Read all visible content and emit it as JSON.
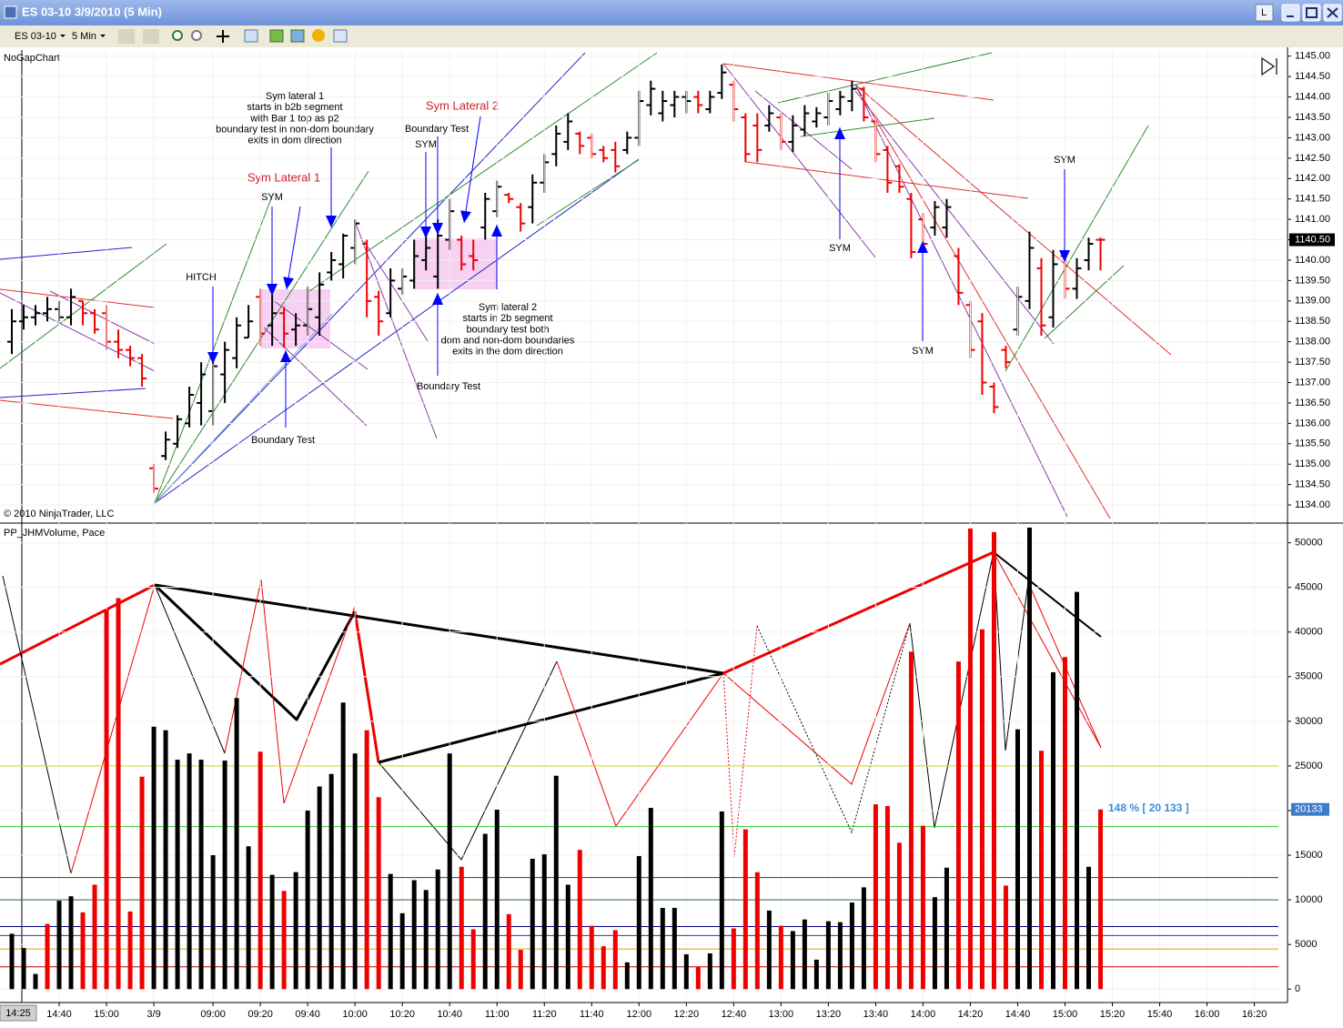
{
  "window": {
    "title": "ES 03-10  3/9/2010 (5 Min)",
    "instrument": "ES 03-10",
    "interval": "5 Min",
    "buttons": [
      "L"
    ]
  },
  "chart_data": [
    {
      "type": "ohlc",
      "title": "NoGapChart",
      "copyright": "© 2010 NinjaTrader, LLC",
      "open": [
        1138.0,
        1138.5,
        1138.6,
        1138.7,
        1138.8,
        1138.6,
        1139.0,
        1138.7,
        1138.7,
        1138.0,
        1137.8,
        1137.6,
        1134.9,
        1135.2,
        1135.5,
        1136.0,
        1136.5,
        1136.3,
        1137.2,
        1137.6,
        1138.1,
        1139.1,
        1138.4,
        1138.7,
        1138.3,
        1138.4,
        1138.6,
        1139.7,
        1139.9,
        1140.3,
        1140.4,
        1139.1,
        1138.7,
        1139.3,
        1139.5,
        1140.0,
        1139.6,
        1140.5,
        1140.5,
        1140.1,
        1140.8,
        1141.2,
        1141.6,
        1141.3,
        1141.3,
        1141.9,
        1142.6,
        1142.9,
        1143.1,
        1143.0,
        1142.7,
        1142.7,
        1142.7,
        1143.0,
        1143.8,
        1143.6,
        1143.8,
        1144.0,
        1144.0,
        1143.7,
        1144.1,
        1144.3,
        1143.5,
        1143.3,
        1143.3,
        1143.5,
        1142.9,
        1143.2,
        1143.4,
        1143.5,
        1143.7,
        1143.9,
        1144.2,
        1143.4,
        1142.7,
        1142.3,
        1141.5,
        1141.0,
        1140.8,
        1140.8,
        1140.1,
        1138.9,
        1138.5,
        1136.9,
        1137.8,
        1138.3,
        1139.0,
        1139.8,
        1138.6,
        1140.1,
        1139.3,
        1140.0,
        1140.5
      ],
      "high": [
        1138.8,
        1138.9,
        1138.9,
        1139.1,
        1139.0,
        1139.3,
        1139.0,
        1138.8,
        1138.9,
        1138.3,
        1137.9,
        1137.7,
        1135.0,
        1135.8,
        1136.2,
        1136.9,
        1137.5,
        1137.6,
        1138.0,
        1138.6,
        1138.9,
        1139.3,
        1139.25,
        1138.85,
        1138.7,
        1139.35,
        1139.7,
        1140.2,
        1140.65,
        1141.0,
        1140.5,
        1139.25,
        1139.8,
        1139.8,
        1140.5,
        1140.75,
        1141.0,
        1141.5,
        1140.6,
        1140.5,
        1141.65,
        1141.95,
        1141.65,
        1141.4,
        1142.1,
        1142.6,
        1143.3,
        1143.6,
        1143.15,
        1143.1,
        1142.8,
        1142.9,
        1143.15,
        1144.15,
        1144.4,
        1144.15,
        1144.15,
        1144.15,
        1144.15,
        1144.15,
        1144.8,
        1144.4,
        1143.6,
        1143.6,
        1143.8,
        1143.6,
        1143.55,
        1143.8,
        1143.75,
        1144.1,
        1144.15,
        1144.4,
        1144.25,
        1143.55,
        1142.8,
        1142.35,
        1141.65,
        1141.15,
        1141.45,
        1141.5,
        1140.3,
        1139.0,
        1138.7,
        1137.0,
        1137.9,
        1139.35,
        1140.7,
        1140.05,
        1140.25,
        1140.25,
        1140.05,
        1140.55,
        1140.55
      ],
      "low": [
        1137.7,
        1138.3,
        1138.4,
        1138.5,
        1138.5,
        1138.4,
        1138.4,
        1138.2,
        1137.8,
        1137.6,
        1137.4,
        1136.9,
        1134.3,
        1135.1,
        1135.4,
        1135.9,
        1135.95,
        1135.95,
        1136.5,
        1137.35,
        1138.1,
        1137.9,
        1137.9,
        1137.85,
        1137.9,
        1138.15,
        1138.15,
        1139.5,
        1139.55,
        1139.9,
        1138.6,
        1138.15,
        1138.6,
        1139.15,
        1139.3,
        1139.75,
        1139.3,
        1140.25,
        1139.75,
        1139.75,
        1140.5,
        1141.05,
        1141.4,
        1140.7,
        1140.9,
        1141.65,
        1142.3,
        1142.7,
        1142.6,
        1142.5,
        1142.4,
        1142.15,
        1142.6,
        1142.8,
        1143.55,
        1143.4,
        1143.5,
        1143.6,
        1143.6,
        1143.6,
        1143.95,
        1143.4,
        1142.4,
        1142.4,
        1143.15,
        1142.7,
        1142.65,
        1143.05,
        1143.25,
        1143.3,
        1143.55,
        1143.65,
        1143.4,
        1142.4,
        1141.65,
        1141.65,
        1140.05,
        1140.25,
        1140.6,
        1140.55,
        1138.9,
        1137.6,
        1136.7,
        1136.25,
        1137.35,
        1138.15,
        1138.8,
        1138.15,
        1138.35,
        1139.05,
        1139.05,
        1139.75,
        1139.75
      ],
      "close": [
        1138.5,
        1138.6,
        1138.7,
        1138.8,
        1138.6,
        1139.1,
        1138.7,
        1138.3,
        1138.0,
        1137.8,
        1137.6,
        1137.1,
        1134.4,
        1135.6,
        1136.1,
        1136.7,
        1137.2,
        1137.4,
        1137.8,
        1138.4,
        1138.5,
        1138.2,
        1138.7,
        1138.2,
        1138.4,
        1138.8,
        1139.4,
        1140.0,
        1140.6,
        1140.9,
        1139.0,
        1138.5,
        1139.5,
        1139.6,
        1140.1,
        1140.3,
        1140.6,
        1141.2,
        1139.9,
        1140.0,
        1141.5,
        1141.8,
        1141.5,
        1140.9,
        1141.9,
        1142.4,
        1143.1,
        1143.4,
        1142.8,
        1142.6,
        1142.5,
        1142.3,
        1143.0,
        1143.9,
        1144.2,
        1143.9,
        1144.0,
        1143.9,
        1143.8,
        1144.0,
        1144.6,
        1143.7,
        1142.6,
        1142.7,
        1143.6,
        1142.9,
        1143.3,
        1143.6,
        1143.6,
        1143.9,
        1144.0,
        1144.2,
        1143.5,
        1142.6,
        1141.9,
        1141.8,
        1140.2,
        1140.4,
        1141.3,
        1141.3,
        1139.2,
        1137.8,
        1137.0,
        1136.4,
        1137.5,
        1139.1,
        1140.3,
        1138.4,
        1139.9,
        1139.3,
        1139.8,
        1140.4,
        1140.5
      ],
      "colors": [
        "#000",
        "#000",
        "#000",
        "#000",
        "#000",
        "#000",
        "#e00",
        "#e00",
        "#e00",
        "#e00",
        "#e00",
        "#e00",
        "#e00",
        "#000",
        "#000",
        "#000",
        "#000",
        "#000",
        "#000",
        "#000",
        "#000",
        "#e00",
        "#000",
        "#e00",
        "#000",
        "#000",
        "#000",
        "#000",
        "#000",
        "#000",
        "#e00",
        "#e00",
        "#000",
        "#000",
        "#000",
        "#000",
        "#000",
        "#000",
        "#e00",
        "#e00",
        "#000",
        "#000",
        "#e00",
        "#e00",
        "#000",
        "#000",
        "#000",
        "#000",
        "#e00",
        "#e00",
        "#e00",
        "#e00",
        "#000",
        "#000",
        "#000",
        "#000",
        "#000",
        "#000",
        "#e00",
        "#000",
        "#000",
        "#e00",
        "#e00",
        "#e00",
        "#000",
        "#e00",
        "#000",
        "#000",
        "#000",
        "#000",
        "#000",
        "#000",
        "#e00",
        "#e00",
        "#e00",
        "#e00",
        "#e00",
        "#e00",
        "#000",
        "#000",
        "#e00",
        "#e00",
        "#e00",
        "#e00",
        "#e00",
        "#000",
        "#000",
        "#e00",
        "#000",
        "#e00",
        "#000",
        "#000",
        "#e00"
      ],
      "xlim": [
        -1,
        107.8
      ],
      "ylim": [
        1133.6,
        1145.15
      ],
      "yticks": [
        {
          "value": 1134,
          "label": "1134.00"
        },
        {
          "value": 1134.5,
          "label": "1134.50"
        },
        {
          "value": 1135,
          "label": "1135.00"
        },
        {
          "value": 1135.5,
          "label": "1135.50"
        },
        {
          "value": 1136,
          "label": "1136.00"
        },
        {
          "value": 1136.5,
          "label": "1136.50"
        },
        {
          "value": 1137,
          "label": "1137.00"
        },
        {
          "value": 1137.5,
          "label": "1137.50"
        },
        {
          "value": 1138,
          "label": "1138.00"
        },
        {
          "value": 1138.5,
          "label": "1138.50"
        },
        {
          "value": 1139,
          "label": "1139.00"
        },
        {
          "value": 1139.5,
          "label": "1139.50"
        },
        {
          "value": 1140,
          "label": "1140.00"
        },
        {
          "value": 1140.5,
          "label": "1140.50"
        },
        {
          "value": 1141,
          "label": "1141.00"
        },
        {
          "value": 1141.5,
          "label": "1141.50"
        },
        {
          "value": 1142,
          "label": "1142.00"
        },
        {
          "value": 1142.5,
          "label": "1142.50"
        },
        {
          "value": 1143,
          "label": "1143.00"
        },
        {
          "value": 1143.5,
          "label": "1143.50"
        },
        {
          "value": 1144,
          "label": "1144.00"
        },
        {
          "value": 1144.5,
          "label": "1144.50"
        },
        {
          "value": 1145,
          "label": "1145.00"
        }
      ],
      "grid": true,
      "last_price": {
        "value": 1140.5,
        "label": "1140.50"
      },
      "annotations": [
        {
          "text": [
            "HITCH"
          ],
          "color": "#000"
        },
        {
          "text": [
            "Sym lateral 1",
            "starts in b2b segment",
            "with Bar 1 top as p2",
            "boundary test in non-dom boundary",
            "exits in dom direction"
          ],
          "color": "#000"
        },
        {
          "text": [
            "Sym Lateral 1"
          ],
          "color": "#c8232c"
        },
        {
          "text": [
            "SYM"
          ],
          "color": "#000"
        },
        {
          "text": [
            "Boundary Test"
          ],
          "color": "#000"
        },
        {
          "text": [
            "Boundary Test"
          ],
          "color": "#000"
        },
        {
          "text": [
            "SYM"
          ],
          "color": "#000"
        },
        {
          "text": [
            "Sym Lateral 2"
          ],
          "color": "#c8232c"
        },
        {
          "text": [
            "Sym lateral 2",
            "starts in 2b segment",
            "boundary test both",
            "dom and non-dom boundaries",
            "exits in the dom direction"
          ],
          "color": "#000"
        },
        {
          "text": [
            "Boundary Test"
          ],
          "color": "#000"
        },
        {
          "text": [
            "SYM"
          ],
          "color": "#000"
        },
        {
          "text": [
            "SYM"
          ],
          "color": "#000"
        },
        {
          "text": [
            "SYM"
          ],
          "color": "#000"
        }
      ]
    },
    {
      "type": "bar",
      "title": "PP_JHMVolume, Pace",
      "values": [
        6200,
        4600,
        1700,
        7300,
        9900,
        10400,
        8600,
        11700,
        42500,
        43800,
        8700,
        23800,
        29400,
        29000,
        25700,
        26400,
        25700,
        15000,
        25600,
        32600,
        16000,
        26600,
        12800,
        11000,
        13100,
        20000,
        22700,
        24100,
        32100,
        26400,
        29000,
        21500,
        12900,
        8500,
        12200,
        11100,
        13400,
        26400,
        13700,
        6700,
        17400,
        20100,
        8400,
        4400,
        14600,
        15100,
        23900,
        11700,
        15600,
        7100,
        4800,
        6600,
        3000,
        14900,
        20300,
        9100,
        9100,
        3900,
        2500,
        4000,
        19900,
        6800,
        17900,
        13100,
        8800,
        7100,
        6500,
        7800,
        3300,
        7600,
        7500,
        9700,
        11400,
        20700,
        20500,
        16400,
        37800,
        18300,
        10300,
        13600,
        36700,
        51600,
        40300,
        51200,
        11600,
        29100,
        51700,
        26700,
        35500,
        37200,
        44500,
        13700,
        20133
      ],
      "colors": [
        "#000",
        "#000",
        "#000",
        "#e00",
        "#000",
        "#000",
        "#e00",
        "#e00",
        "#e00",
        "#e00",
        "#e00",
        "#e00",
        "#000",
        "#000",
        "#000",
        "#000",
        "#000",
        "#000",
        "#000",
        "#000",
        "#000",
        "#e00",
        "#000",
        "#e00",
        "#000",
        "#000",
        "#000",
        "#000",
        "#000",
        "#000",
        "#e00",
        "#e00",
        "#000",
        "#000",
        "#000",
        "#000",
        "#000",
        "#000",
        "#e00",
        "#e00",
        "#000",
        "#000",
        "#e00",
        "#e00",
        "#000",
        "#000",
        "#000",
        "#000",
        "#e00",
        "#e00",
        "#e00",
        "#e00",
        "#000",
        "#000",
        "#000",
        "#000",
        "#000",
        "#000",
        "#e00",
        "#000",
        "#000",
        "#e00",
        "#e00",
        "#e00",
        "#000",
        "#e00",
        "#000",
        "#000",
        "#000",
        "#000",
        "#000",
        "#000",
        "#000",
        "#e00",
        "#e00",
        "#e00",
        "#e00",
        "#e00",
        "#000",
        "#000",
        "#e00",
        "#e00",
        "#e00",
        "#e00",
        "#e00",
        "#000",
        "#000",
        "#e00",
        "#000",
        "#e00",
        "#000",
        "#000",
        "#e00"
      ],
      "xlim": [
        -1,
        107.8
      ],
      "xticks": [
        {
          "value": 4,
          "label": "14:40"
        },
        {
          "value": 8,
          "label": "15:00"
        },
        {
          "value": 12,
          "label": "3/9"
        },
        {
          "value": 17,
          "label": "09:00"
        },
        {
          "value": 21,
          "label": "09:20"
        },
        {
          "value": 25,
          "label": "09:40"
        },
        {
          "value": 29,
          "label": "10:00"
        },
        {
          "value": 33,
          "label": "10:20"
        },
        {
          "value": 37,
          "label": "10:40"
        },
        {
          "value": 41,
          "label": "11:00"
        },
        {
          "value": 45,
          "label": "11:20"
        },
        {
          "value": 49,
          "label": "11:40"
        },
        {
          "value": 53,
          "label": "12:00"
        },
        {
          "value": 57,
          "label": "12:20"
        },
        {
          "value": 61,
          "label": "12:40"
        },
        {
          "value": 65,
          "label": "13:00"
        },
        {
          "value": 69,
          "label": "13:20"
        },
        {
          "value": 73,
          "label": "13:40"
        },
        {
          "value": 77,
          "label": "14:00"
        },
        {
          "value": 81,
          "label": "14:20"
        },
        {
          "value": 85,
          "label": "14:40"
        },
        {
          "value": 89,
          "label": "15:00"
        },
        {
          "value": 93,
          "label": "15:20"
        },
        {
          "value": 97,
          "label": "15:40"
        },
        {
          "value": 101,
          "label": "16:00"
        },
        {
          "value": 105,
          "label": "16:20"
        }
      ],
      "ylim": [
        -1300,
        52000
      ],
      "yticks": [
        0,
        5000,
        10000,
        15000,
        20000,
        25000,
        30000,
        35000,
        40000,
        45000,
        50000
      ],
      "grid": true,
      "levels": [
        {
          "value": 25000,
          "color": "#d8d800"
        },
        {
          "value": 18200,
          "color": "#33cc33"
        },
        {
          "value": 12500,
          "color": "#006400"
        },
        {
          "value": 10000,
          "color": "#2e6b2e"
        },
        {
          "value": 7000,
          "color": "#000080"
        },
        {
          "value": 6000,
          "color": "#3030a0"
        },
        {
          "value": 4500,
          "color": "#e0a000"
        },
        {
          "value": 2500,
          "color": "#c00000"
        }
      ],
      "pace_label": "148 % [ 20 133 ]",
      "last_value": 20133,
      "cursor_label": "14:25"
    }
  ]
}
